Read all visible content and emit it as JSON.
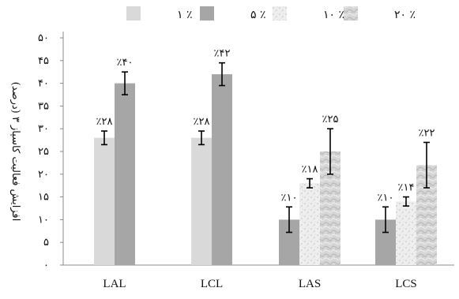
{
  "chart_data": {
    "type": "bar",
    "ylabel": "افزایش فعالیت کاسپاز ۳ (درصد)",
    "ylim": [
      0,
      50
    ],
    "yticks": [
      0,
      5,
      10,
      15,
      20,
      25,
      30,
      35,
      40,
      45,
      50
    ],
    "ytick_labels": [
      "۰",
      "۵",
      "۱۰",
      "۱۵",
      "۲۰",
      "۲۵",
      "۳۰",
      "۳۵",
      "۴۰",
      "۴۵",
      "۵۰"
    ],
    "categories": [
      "LAL",
      "LCL",
      "LAS",
      "LCS"
    ],
    "legend_position": "top",
    "grid": false,
    "series": [
      {
        "name": "٪ ۱",
        "color": "#d9d9d9",
        "values": [
          28,
          28,
          null,
          null
        ],
        "errors": [
          1.5,
          1.5,
          null,
          null
        ],
        "labels": [
          "٪۲۸",
          "٪۲۸",
          "",
          ""
        ]
      },
      {
        "name": "٪ ۵",
        "color": "#a6a6a6",
        "values": [
          40,
          42,
          10,
          10
        ],
        "errors": [
          2.5,
          2.5,
          2.8,
          2.8
        ],
        "labels": [
          "٪۴۰",
          "٪۴۲",
          "٪۱۰",
          "٪۱۰"
        ]
      },
      {
        "name": "٪ ۱۰",
        "color": "#ececec",
        "values": [
          null,
          null,
          18,
          14
        ],
        "errors": [
          null,
          null,
          1.0,
          1.0
        ],
        "labels": [
          "",
          "",
          "٪۱۸",
          "٪۱۴"
        ]
      },
      {
        "name": "٪ ۲۰",
        "color": "#cfcfcf",
        "values": [
          null,
          null,
          25,
          22
        ],
        "errors": [
          null,
          null,
          5.0,
          5.0
        ],
        "labels": [
          "",
          "",
          "٪۲۵",
          "٪۲۲"
        ]
      }
    ]
  }
}
